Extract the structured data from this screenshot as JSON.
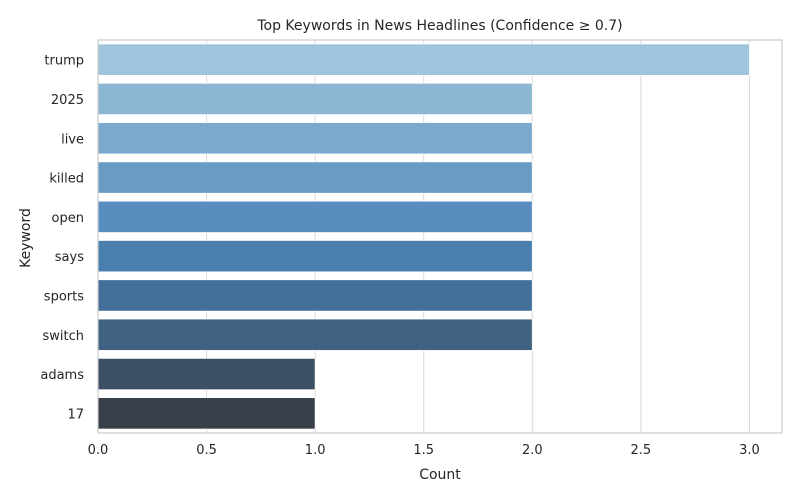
{
  "chart_data": {
    "type": "bar",
    "orientation": "horizontal",
    "title": "Top Keywords in News Headlines (Confidence ≥ 0.7)",
    "xlabel": "Count",
    "ylabel": "Keyword",
    "categories": [
      "trump",
      "2025",
      "live",
      "killed",
      "open",
      "says",
      "sports",
      "switch",
      "adams",
      "17"
    ],
    "values": [
      3,
      2,
      2,
      2,
      2,
      2,
      2,
      2,
      1,
      1
    ],
    "xlim": [
      0,
      3.15
    ],
    "xticks": [
      0,
      0.5,
      1,
      1.5,
      2,
      2.5,
      3
    ],
    "xtick_labels": [
      "0.0",
      "0.5",
      "1.0",
      "1.5",
      "2.0",
      "2.5",
      "3.0"
    ],
    "grid": "vertical",
    "colors": [
      "#9ec5dd",
      "#8db6d4",
      "#7ba8cc",
      "#6a9bc5",
      "#5a8dbf",
      "#4a7fad",
      "#43709a",
      "#3f6282",
      "#3b5064",
      "#373f48"
    ]
  }
}
